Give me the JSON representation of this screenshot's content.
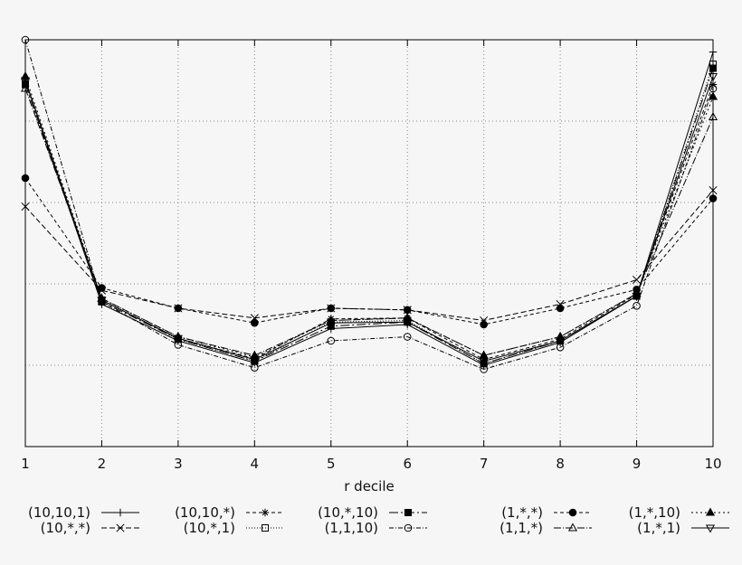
{
  "chart_data": {
    "type": "line",
    "xlabel": "r decile",
    "ylabel": "",
    "title": "",
    "x": [
      1,
      2,
      3,
      4,
      5,
      6,
      7,
      8,
      9,
      10
    ],
    "x_tick_labels": [
      "1",
      "2",
      "3",
      "4",
      "5",
      "6",
      "7",
      "8",
      "9",
      "10"
    ],
    "xlim": [
      1,
      10
    ],
    "ylim": [
      0,
      5
    ],
    "grid": true,
    "legend_placement": "bottom",
    "series": [
      {
        "name": "(10,10,1)",
        "marker": "plus",
        "dash": "",
        "values": [
          4.5,
          1.75,
          1.3,
          1.03,
          1.45,
          1.5,
          1.0,
          1.28,
          1.85,
          4.85
        ]
      },
      {
        "name": "(10,10,*)",
        "marker": "star",
        "dash": "4,3",
        "values": [
          4.5,
          1.8,
          1.33,
          1.08,
          1.57,
          1.58,
          1.07,
          1.32,
          1.87,
          4.45
        ]
      },
      {
        "name": "(10,*,10)",
        "marker": "filled-square",
        "dash": "10,3,2,3",
        "values": [
          4.45,
          1.78,
          1.32,
          1.05,
          1.48,
          1.53,
          1.02,
          1.3,
          1.85,
          4.65
        ]
      },
      {
        "name": "(1,*,*)",
        "marker": "filled-circle",
        "dash": "4,3",
        "values": [
          3.3,
          1.95,
          1.7,
          1.52,
          1.7,
          1.68,
          1.5,
          1.7,
          1.93,
          3.05
        ]
      },
      {
        "name": "(1,*,10)",
        "marker": "filled-triangle",
        "dash": "2,3",
        "values": [
          4.55,
          1.82,
          1.35,
          1.1,
          1.55,
          1.58,
          1.12,
          1.35,
          1.88,
          4.3
        ]
      },
      {
        "name": "(10,*,*)",
        "marker": "cross",
        "dash": "6,3",
        "values": [
          2.95,
          1.92,
          1.7,
          1.58,
          1.7,
          1.68,
          1.55,
          1.75,
          2.05,
          3.15
        ]
      },
      {
        "name": "(10,*,1)",
        "marker": "square",
        "dash": "1,2",
        "values": [
          4.45,
          1.8,
          1.32,
          1.05,
          1.53,
          1.55,
          1.02,
          1.3,
          1.85,
          4.7
        ]
      },
      {
        "name": "(1,1,10)",
        "marker": "circle",
        "dash": "5,2,1,2",
        "values": [
          5.0,
          1.78,
          1.25,
          0.97,
          1.3,
          1.35,
          0.95,
          1.22,
          1.73,
          4.4
        ]
      },
      {
        "name": "(1,1,*)",
        "marker": "triangle",
        "dash": "8,2,1,2",
        "values": [
          4.4,
          1.82,
          1.35,
          1.12,
          1.55,
          1.58,
          1.12,
          1.35,
          1.88,
          4.05
        ]
      },
      {
        "name": "(1,*,1)",
        "marker": "triangle-down",
        "dash": "",
        "values": [
          4.5,
          1.8,
          1.33,
          1.07,
          1.52,
          1.53,
          1.05,
          1.3,
          1.85,
          4.55
        ]
      }
    ]
  }
}
